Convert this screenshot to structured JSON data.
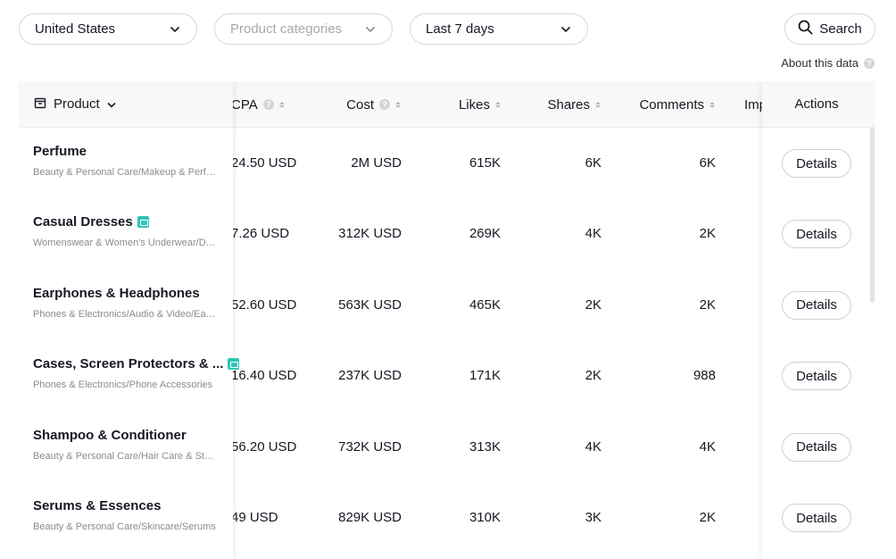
{
  "filters": {
    "country": "United States",
    "category_placeholder": "Product categories",
    "date_range": "Last 7 days",
    "search_label": "Search"
  },
  "about_label": "About this data",
  "table": {
    "headers": {
      "product": "Product",
      "cpa": "CPA",
      "cost": "Cost",
      "likes": "Likes",
      "shares": "Shares",
      "comments": "Comments",
      "impressions": "Imp",
      "actions": "Actions"
    },
    "details_label": "Details",
    "rows": [
      {
        "name": "Perfume",
        "category": "Beauty & Personal Care/Makeup & Perfume",
        "cpa": "24.50 USD",
        "cost": "2M USD",
        "likes": "615K",
        "shares": "6K",
        "comments": "6K",
        "badge": false
      },
      {
        "name": "Casual Dresses",
        "category": "Womenswear & Women's Underwear/Dresses",
        "cpa": "7.26 USD",
        "cost": "312K USD",
        "likes": "269K",
        "shares": "4K",
        "comments": "2K",
        "badge": true
      },
      {
        "name": "Earphones & Headphones",
        "category": "Phones & Electronics/Audio & Video/Earphones",
        "cpa": "52.60 USD",
        "cost": "563K USD",
        "likes": "465K",
        "shares": "2K",
        "comments": "2K",
        "badge": false
      },
      {
        "name": "Cases, Screen Protectors & ...",
        "category": "Phones & Electronics/Phone Accessories",
        "cpa": "16.40 USD",
        "cost": "237K USD",
        "likes": "171K",
        "shares": "2K",
        "comments": "988",
        "badge": true
      },
      {
        "name": "Shampoo & Conditioner",
        "category": "Beauty & Personal Care/Hair Care & Styling",
        "cpa": "56.20 USD",
        "cost": "732K USD",
        "likes": "313K",
        "shares": "4K",
        "comments": "4K",
        "badge": false
      },
      {
        "name": "Serums & Essences",
        "category": "Beauty & Personal Care/Skincare/Serums",
        "cpa": "49 USD",
        "cost": "829K USD",
        "likes": "310K",
        "shares": "3K",
        "comments": "2K",
        "badge": false
      }
    ]
  }
}
